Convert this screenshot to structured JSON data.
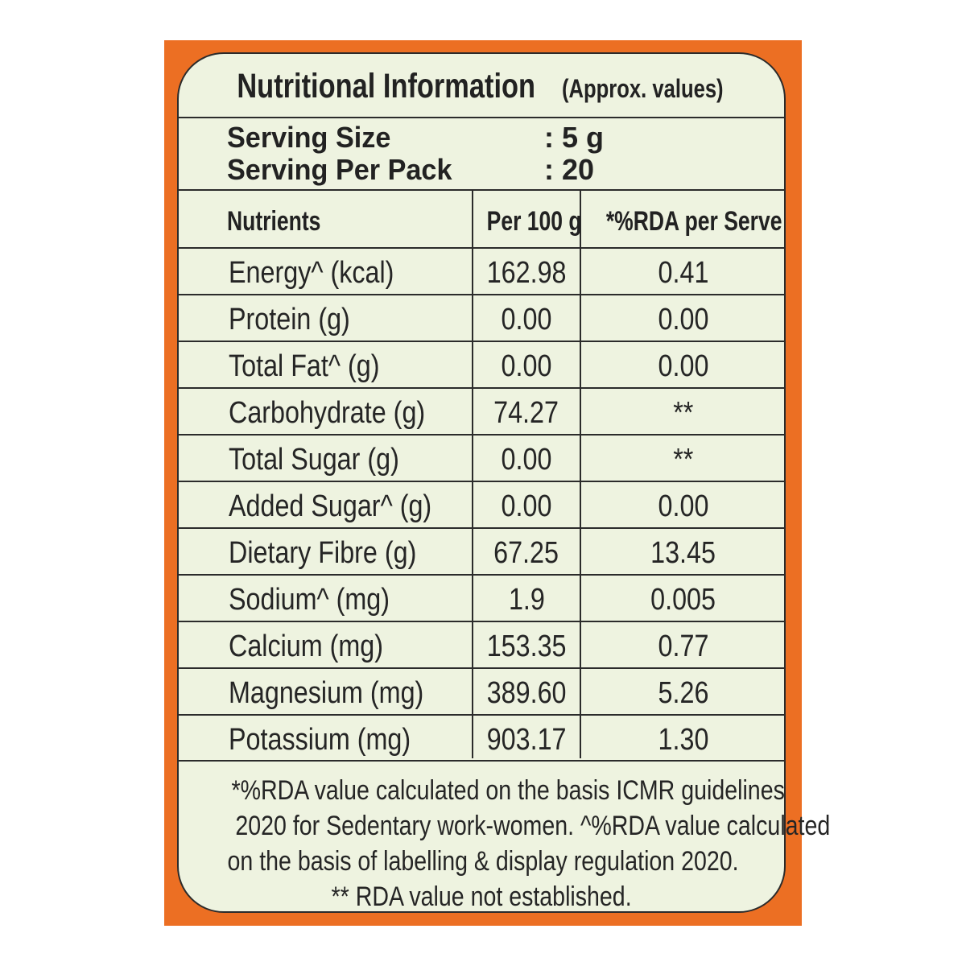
{
  "label": {
    "title": "Nutritional Information",
    "title_note": "(Approx. values)",
    "serving_size_label": "Serving Size",
    "serving_size_value": ": 5 g",
    "serving_per_pack_label": "Serving Per Pack",
    "serving_per_pack_value": ": 20",
    "table": {
      "headers": [
        "Nutrients",
        "Per 100 g",
        "*%RDA per Serve"
      ],
      "rows": [
        {
          "nutrient": "Energy^ (kcal)",
          "per100": "162.98",
          "rda": "0.41"
        },
        {
          "nutrient": "Protein (g)",
          "per100": "0.00",
          "rda": "0.00"
        },
        {
          "nutrient": "Total Fat^ (g)",
          "per100": "0.00",
          "rda": "0.00"
        },
        {
          "nutrient": "Carbohydrate (g)",
          "per100": "74.27",
          "rda": "**"
        },
        {
          "nutrient": "Total Sugar (g)",
          "per100": "0.00",
          "rda": "**"
        },
        {
          "nutrient": "Added Sugar^ (g)",
          "per100": "0.00",
          "rda": "0.00"
        },
        {
          "nutrient": "Dietary Fibre (g)",
          "per100": "67.25",
          "rda": "13.45"
        },
        {
          "nutrient": "Sodium^ (mg)",
          "per100": "1.9",
          "rda": "0.005"
        },
        {
          "nutrient": "Calcium (mg)",
          "per100": "153.35",
          "rda": "0.77"
        },
        {
          "nutrient": "Magnesium (mg)",
          "per100": "389.60",
          "rda": "5.26"
        },
        {
          "nutrient": "Potassium (mg)",
          "per100": "903.17",
          "rda": "1.30"
        }
      ]
    },
    "footnotes": [
      "*%RDA value calculated on the basis ICMR guidelines",
      "2020 for Sedentary work-women. ^%RDA value calculated",
      "on the basis of labelling & display regulation 2020.",
      "** RDA value not established."
    ]
  },
  "colors": {
    "border_orange": "#ec6f23",
    "card_background": "#eef3e0",
    "text": "#222222"
  }
}
